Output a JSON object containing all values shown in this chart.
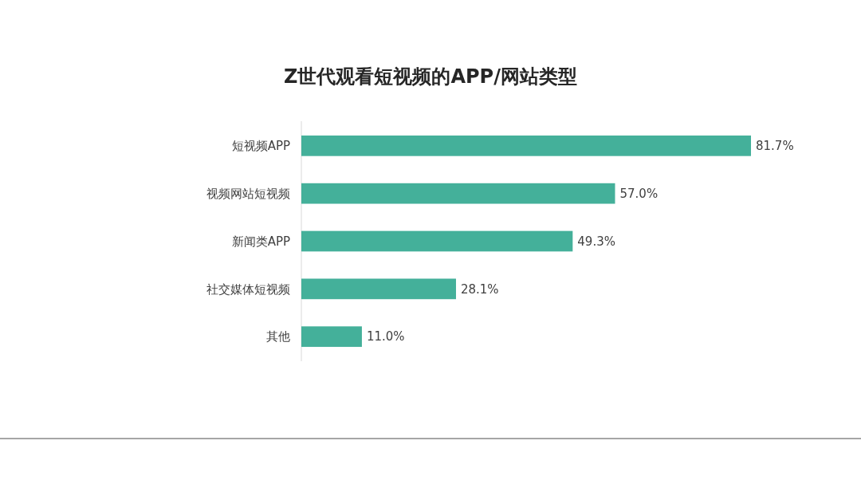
{
  "chart_data": {
    "type": "bar",
    "orientation": "horizontal",
    "title": "Z世代观看短视频的APP/网站类型",
    "categories": [
      "短视频APP",
      "视频网站短视频",
      "新闻类APP",
      "社交媒体短视频",
      "其他"
    ],
    "values": [
      81.7,
      57.0,
      49.3,
      28.1,
      11.0
    ],
    "value_labels": [
      "81.7%",
      "57.0%",
      "49.3%",
      "28.1%",
      "11.0%"
    ],
    "color": "#44b09a"
  }
}
